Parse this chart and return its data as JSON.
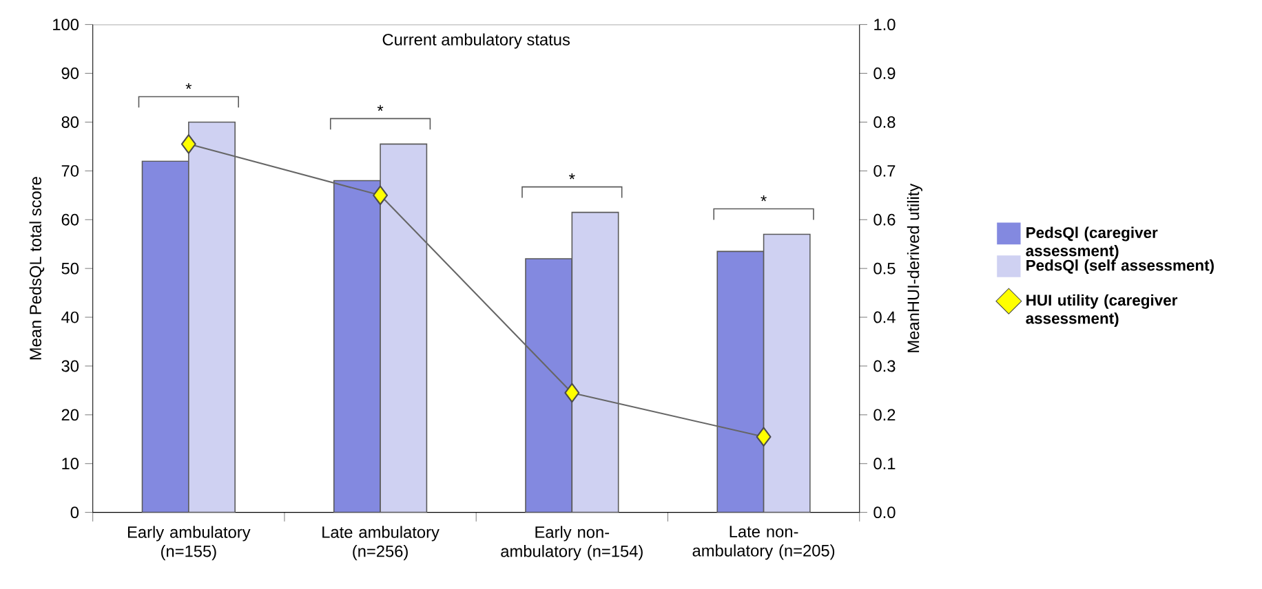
{
  "chart_data": {
    "type": "bar",
    "title": "Current ambulatory status",
    "categories": [
      "Early ambulatory (n=155)",
      "Late ambulatory (n=256)",
      "Early non-ambulatory (n=154)",
      "Late non-ambulatory (n=205)"
    ],
    "series": [
      {
        "name": "PedsQl (caregiver assessment)",
        "color": "#8389e0",
        "values": [
          72,
          68,
          52,
          53.5
        ]
      },
      {
        "name": "PedsQl (self assessment)",
        "color": "#cfd1f2",
        "values": [
          80,
          75.5,
          61.5,
          57
        ]
      },
      {
        "name": "HUI utility (caregiver assessment)",
        "type": "line",
        "axis": "y2",
        "marker": "diamond",
        "color": "#ffff00",
        "values": [
          0.755,
          0.65,
          0.245,
          0.155
        ]
      }
    ],
    "ylabel": "Mean PedsQL total score",
    "y2label": "MeanHUI-derived utility",
    "ylim": [
      0,
      100
    ],
    "yticks": [
      0,
      10,
      20,
      30,
      40,
      50,
      60,
      70,
      80,
      90,
      100
    ],
    "y2lim": [
      0,
      1
    ],
    "y2ticks": [
      {
        "value": 0,
        "label": "0.0"
      },
      {
        "value": 0.1,
        "label": "0.1"
      },
      {
        "value": 0.2,
        "label": "0.2"
      },
      {
        "value": 0.3,
        "label": "0.3"
      },
      {
        "value": 0.4,
        "label": "0.4"
      },
      {
        "value": 0.5,
        "label": "0.5"
      },
      {
        "value": 0.6,
        "label": "0.6"
      },
      {
        "value": 0.7,
        "label": "0.7"
      },
      {
        "value": 0.8,
        "label": "0.8"
      },
      {
        "value": 0.9,
        "label": "0.9"
      },
      {
        "value": 1,
        "label": "1.0"
      }
    ],
    "annotations": [
      "*",
      "*",
      "*",
      "*"
    ],
    "legend": "right",
    "grid": false
  }
}
